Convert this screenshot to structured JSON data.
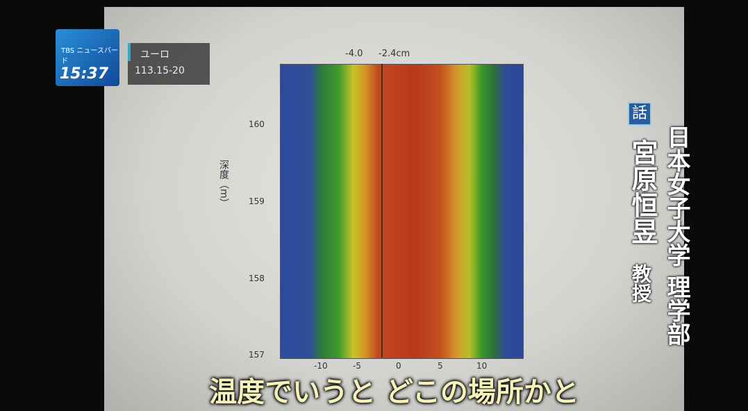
{
  "broadcast": {
    "logo": "TBS ニュースバード",
    "time": "15:37",
    "market_name": "ユーロ",
    "market_rate": "113.15-20"
  },
  "figure": {
    "top_labels": [
      "-4.0",
      "-2.4cm"
    ],
    "y_axis_label": "深度（m）",
    "y_ticks": [
      "160",
      "159",
      "158",
      "157"
    ],
    "x_ticks": [
      "-10",
      "-5",
      "0",
      "5",
      "10"
    ]
  },
  "speaker": {
    "badge": "話",
    "affiliation": "日本女子大学 理学部",
    "name": "宮原恒昱",
    "role": "教授"
  },
  "caption": "温度でいうと どこの場所かと"
}
